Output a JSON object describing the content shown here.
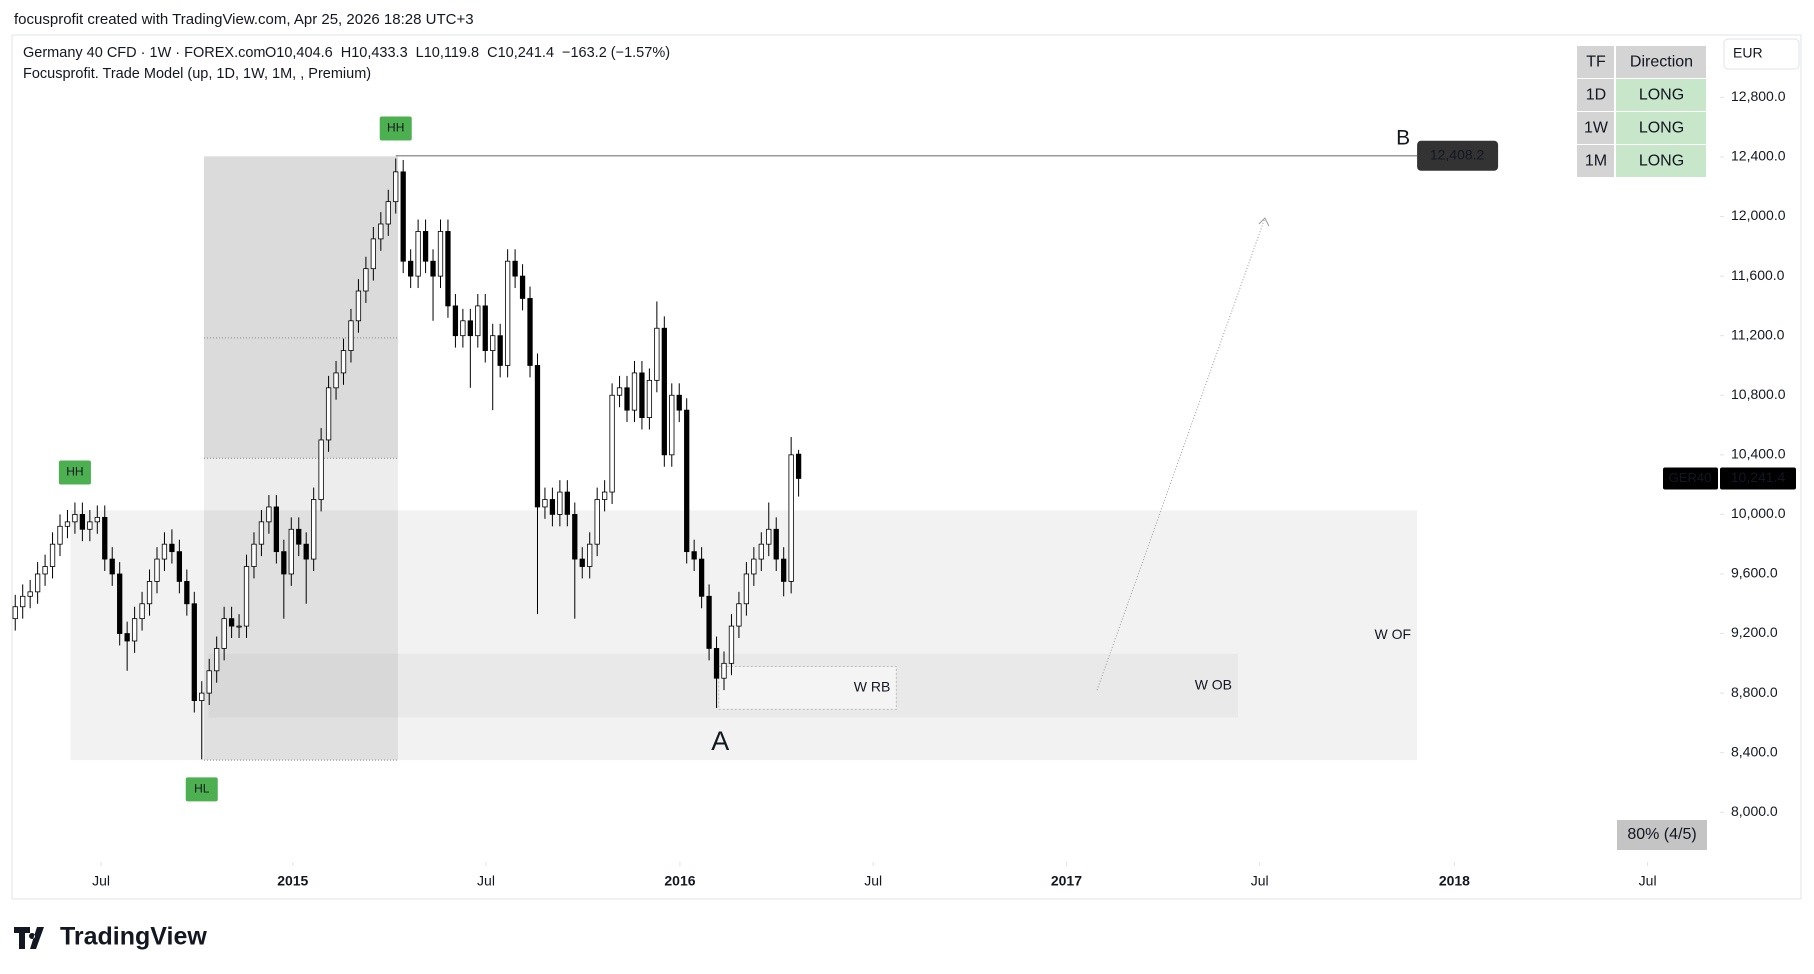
{
  "header": {
    "attribution": "focusprofit created with TradingView.com, Apr 25, 2026 18:28 UTC+3",
    "brand": "TradingView"
  },
  "chart_data": {
    "type": "candlestick",
    "title": "Germany 40 CFD · 1W · FOREX.com",
    "ohlc_text": [
      "O10,404.6",
      "H10,433.3",
      "L10,119.8",
      "C10,241.4",
      "−163.2 (−1.57%)"
    ],
    "indicator": "Focusprofit. Trade Model (up, 1D, 1W, 1M, , Premium)",
    "currency": "EUR",
    "up_color": "#ffffff",
    "down_color": "#000000",
    "open": [
      9300,
      9380,
      9450,
      9480,
      9600,
      9650,
      9800,
      9920,
      9950,
      10000,
      9900,
      9950,
      9980,
      9700,
      9600,
      9200,
      9150,
      9300,
      9400,
      9550,
      9700,
      9800,
      9750,
      9550,
      9400,
      8750,
      8800,
      8950,
      9100,
      9300,
      9250,
      9250,
      9650,
      9800,
      9950,
      10050,
      9750,
      9600,
      9900,
      9800,
      9700,
      10100,
      10500,
      10850,
      10950,
      11100,
      11300,
      11500,
      11650,
      11850,
      11950,
      12100,
      12300,
      11700,
      11600,
      11900,
      11700,
      11600,
      11900,
      11400,
      11200,
      11300,
      11200,
      11400,
      11100,
      11200,
      11000,
      11700,
      11600,
      11450,
      11000,
      10050,
      10100,
      10000,
      10150,
      10000,
      9700,
      9650,
      9800,
      10100,
      10150,
      10800,
      10850,
      10700,
      10950,
      10650,
      10900,
      11250,
      10400,
      10800,
      10700,
      9750,
      9700,
      9450,
      9100,
      8900,
      9000,
      9250,
      9400,
      9600,
      9700,
      9800,
      9900,
      9700,
      9550,
      10404.6
    ],
    "high": [
      9460,
      9530,
      9560,
      9680,
      9730,
      9880,
      10000,
      10030,
      10080,
      10080,
      10030,
      10060,
      10060,
      9780,
      9680,
      9280,
      9380,
      9480,
      9630,
      9780,
      9880,
      9900,
      9830,
      9630,
      9480,
      8880,
      9030,
      9180,
      9380,
      9380,
      9330,
      9730,
      9880,
      10030,
      10130,
      10130,
      9830,
      9980,
      9980,
      9880,
      10180,
      10580,
      10930,
      11030,
      11180,
      11380,
      11580,
      11730,
      11930,
      12030,
      12180,
      12390,
      12380,
      11780,
      11980,
      11980,
      11780,
      11980,
      11980,
      11480,
      11380,
      11380,
      11480,
      11480,
      11280,
      11280,
      11780,
      11780,
      11680,
      11530,
      11080,
      10180,
      10180,
      10230,
      10230,
      10080,
      9780,
      9880,
      10180,
      10230,
      10880,
      10930,
      10930,
      11030,
      11030,
      10980,
      11430,
      11330,
      10880,
      10880,
      10780,
      9830,
      9780,
      9530,
      9180,
      9080,
      9330,
      9480,
      9680,
      9780,
      9880,
      10080,
      9980,
      9780,
      10520,
      10433.3
    ],
    "low": [
      9220,
      9300,
      9370,
      9400,
      9520,
      9570,
      9720,
      9840,
      9870,
      9820,
      9820,
      9870,
      9620,
      9520,
      9120,
      8950,
      9070,
      9220,
      9320,
      9470,
      9620,
      9670,
      9470,
      9320,
      8670,
      8355,
      8720,
      8870,
      9020,
      9170,
      9170,
      9170,
      9570,
      9720,
      9870,
      9670,
      9300,
      9520,
      9720,
      9400,
      9620,
      10020,
      10420,
      10770,
      10870,
      11020,
      11220,
      11420,
      11570,
      11770,
      11870,
      12020,
      11620,
      11520,
      11520,
      11620,
      11300,
      11520,
      11320,
      11120,
      11120,
      10850,
      11120,
      11020,
      10700,
      10920,
      10920,
      11520,
      11370,
      10920,
      9330,
      9970,
      9920,
      9920,
      9920,
      9300,
      9570,
      9570,
      9720,
      10020,
      10070,
      10720,
      10620,
      10620,
      10570,
      10570,
      10820,
      10320,
      10320,
      10620,
      9670,
      9620,
      9370,
      9020,
      8700,
      8820,
      8920,
      9170,
      9320,
      9520,
      9620,
      9720,
      9620,
      9450,
      9470,
      10119.8
    ],
    "close": [
      9380,
      9450,
      9480,
      9600,
      9650,
      9800,
      9920,
      9950,
      10000,
      9900,
      9950,
      9980,
      9700,
      9600,
      9200,
      9150,
      9300,
      9400,
      9550,
      9700,
      9800,
      9750,
      9550,
      9400,
      8750,
      8800,
      8950,
      9100,
      9300,
      9250,
      9250,
      9650,
      9800,
      9950,
      10050,
      9750,
      9600,
      9900,
      9800,
      9700,
      10100,
      10500,
      10850,
      10950,
      11100,
      11300,
      11500,
      11650,
      11850,
      11950,
      12100,
      12300,
      11700,
      11600,
      11900,
      11700,
      11600,
      11900,
      11400,
      11200,
      11300,
      11200,
      11400,
      11100,
      11200,
      11000,
      11700,
      11600,
      11450,
      11000,
      10050,
      10100,
      10000,
      10150,
      10000,
      9700,
      9650,
      9800,
      10100,
      10150,
      10800,
      10850,
      10700,
      10950,
      10650,
      10900,
      11250,
      10400,
      10800,
      10700,
      9750,
      9700,
      9450,
      9100,
      8900,
      9000,
      9250,
      9400,
      9600,
      9700,
      9800,
      9900,
      9700,
      9550,
      10400,
      10241.4
    ],
    "xlim": [
      -0.3,
      228.5
    ],
    "xticks": [
      {
        "value": 11.5,
        "label": "Jul"
      },
      {
        "value": 37.2,
        "label": "2015"
      },
      {
        "value": 63.1,
        "label": "Jul"
      },
      {
        "value": 89.1,
        "label": "2016"
      },
      {
        "value": 115,
        "label": "Jul"
      },
      {
        "value": 140.9,
        "label": "2017"
      },
      {
        "value": 166.8,
        "label": "Jul"
      },
      {
        "value": 192.9,
        "label": "2018"
      },
      {
        "value": 218.8,
        "label": "Jul"
      }
    ],
    "ylim": [
      7666,
      13219
    ],
    "yticks": [
      {
        "value": 8000,
        "label": "8,000.0"
      },
      {
        "value": 8400,
        "label": "8,400.0"
      },
      {
        "value": 8800,
        "label": "8,800.0"
      },
      {
        "value": 9200,
        "label": "9,200.0"
      },
      {
        "value": 9600,
        "label": "9,600.0"
      },
      {
        "value": 10000,
        "label": "10,000.0"
      },
      {
        "value": 10400,
        "label": "10,400.0"
      },
      {
        "value": 10800,
        "label": "10,800.0"
      },
      {
        "value": 11200,
        "label": "11,200.0"
      },
      {
        "value": 11600,
        "label": "11,600.0"
      },
      {
        "value": 12000,
        "label": "12,000.0"
      },
      {
        "value": 12400,
        "label": "12,400.0"
      },
      {
        "value": 12800,
        "label": "12,800.0"
      }
    ],
    "last_price": {
      "symbol": "GER40",
      "value": 10241.4,
      "label": "10,241.4"
    },
    "level": {
      "name": "B",
      "value": 12408.2,
      "label": "12,408.2",
      "start": 51,
      "end": 187.9
    },
    "point_a": {
      "label": "A",
      "x": 94.5,
      "y": 8466
    },
    "swings": [
      {
        "label": "HH",
        "x": 51,
        "price": 12390
      },
      {
        "label": "HH",
        "x": 8,
        "price": 10080
      },
      {
        "label": "HL",
        "x": 25,
        "price": 8355
      }
    ],
    "zones": [
      {
        "label": "W OF",
        "x": [
          7.4,
          187.9
        ],
        "y": [
          8350,
          10027
        ],
        "color": "#f2f2f2"
      },
      {
        "label": "W OB",
        "x": [
          25.9,
          163.9
        ],
        "y": [
          8637,
          9064
        ],
        "color": "#e9e9e9"
      },
      {
        "label": "W RB",
        "x": [
          94.3,
          118.1
        ],
        "y": [
          8691,
          8979
        ],
        "color": "#f4f4f4"
      }
    ],
    "range_box": {
      "x": [
        25.3,
        51.3
      ],
      "y": [
        8350,
        12404
      ],
      "mid": 10377,
      "eq": 11185
    },
    "projection": {
      "from": [
        145,
        8820
      ],
      "to": [
        167.5,
        11990
      ]
    },
    "table": {
      "header": [
        "TF",
        "Direction"
      ],
      "rows": [
        [
          "1D",
          "LONG"
        ],
        [
          "1W",
          "LONG"
        ],
        [
          "1M",
          "LONG"
        ]
      ]
    },
    "score": "80% (4/5)"
  }
}
